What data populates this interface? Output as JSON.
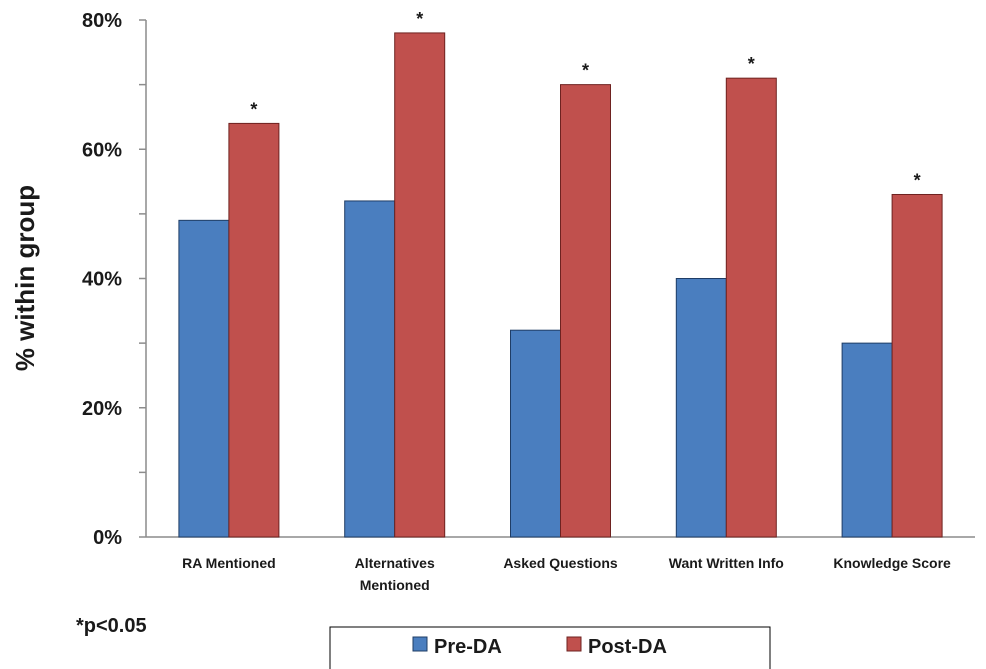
{
  "chart_data": {
    "type": "bar",
    "categories": [
      [
        "RA Mentioned"
      ],
      [
        "Alternatives",
        "Mentioned"
      ],
      [
        "Asked Questions"
      ],
      [
        "Want Written Info"
      ],
      [
        "Knowledge Score"
      ]
    ],
    "series": [
      {
        "name": "Pre-DA",
        "color": "#4a7ebf",
        "values": [
          49,
          52,
          32,
          40,
          30
        ]
      },
      {
        "name": "Post-DA",
        "color": "#c0504d",
        "values": [
          64,
          78,
          70,
          71,
          53
        ]
      }
    ],
    "significance": [
      "*",
      "*",
      "*",
      "*",
      "*"
    ],
    "ylabel": "% within group",
    "ylim": [
      0,
      80
    ],
    "yticks": [
      0,
      20,
      40,
      60,
      80
    ],
    "ytick_labels": [
      "0%",
      "20%",
      "40%",
      "60%",
      "80%"
    ],
    "legend_position": "bottom-center",
    "footnote": "*p<0.05"
  }
}
